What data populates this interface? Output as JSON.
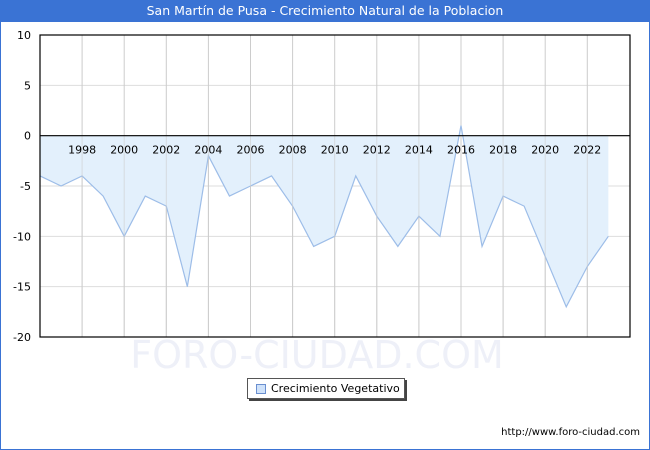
{
  "title": "San Martín de Pusa - Crecimiento Natural de la Poblacion",
  "watermark": "FORO-CIUDAD.COM",
  "footer_url": "http://www.foro-ciudad.com",
  "legend": {
    "label": "Crecimiento Vegetativo",
    "swatch_color": "#cfe2fa"
  },
  "colors": {
    "header": "#3a73d4",
    "area_fill": "#e3f0fc",
    "line": "#9dbde8",
    "grid": "#cccccc"
  },
  "chart_data": {
    "type": "area",
    "title": "San Martín de Pusa - Crecimiento Natural de la Poblacion",
    "xlabel": "",
    "ylabel": "",
    "ylim": [
      -20,
      10
    ],
    "yticks": [
      10,
      5,
      0,
      -5,
      -10,
      -15,
      -20
    ],
    "xtick_labels": [
      "1998",
      "2000",
      "2002",
      "2004",
      "2006",
      "2008",
      "2010",
      "2012",
      "2014",
      "2016",
      "2018",
      "2020",
      "2022"
    ],
    "grid": true,
    "legend_position": "bottom",
    "x": [
      1996,
      1997,
      1998,
      1999,
      2000,
      2001,
      2002,
      2003,
      2004,
      2005,
      2006,
      2007,
      2008,
      2009,
      2010,
      2011,
      2012,
      2013,
      2014,
      2015,
      2016,
      2017,
      2018,
      2019,
      2020,
      2021,
      2022,
      2023
    ],
    "series": [
      {
        "name": "Crecimiento Vegetativo",
        "values": [
          -4,
          -5,
          -4,
          -6,
          -10,
          -6,
          -7,
          -15,
          -2,
          -6,
          -5,
          -4,
          -7,
          -11,
          -10,
          -4,
          -8,
          -11,
          -8,
          -10,
          1,
          -11,
          -6,
          -7,
          -12,
          -17,
          -13,
          -10
        ]
      }
    ]
  }
}
